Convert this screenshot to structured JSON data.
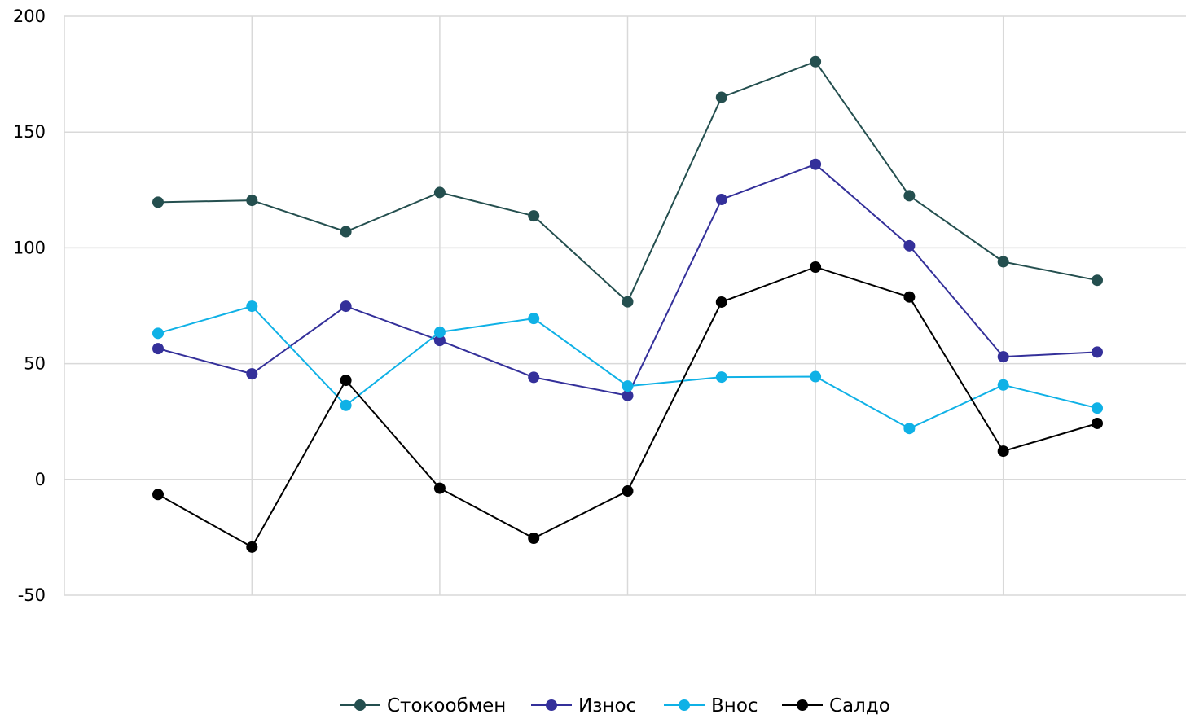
{
  "chart_data": {
    "type": "line",
    "title": "",
    "xlabel": "",
    "ylabel": "",
    "ylim": [
      -50,
      200
    ],
    "yticks": [
      200,
      150,
      100,
      50,
      0,
      -50
    ],
    "grid": true,
    "legend_position": "bottom",
    "x": [
      1,
      2,
      3,
      4,
      5,
      6,
      7,
      8,
      9,
      10,
      11
    ],
    "series": [
      {
        "name": "Стокообмен",
        "color": "#244f4f",
        "values": [
          119.7,
          120.5,
          107,
          123.9,
          113.8,
          76.7,
          165,
          180.4,
          122.5,
          94,
          86
        ]
      },
      {
        "name": "Износ",
        "color": "#34309a",
        "values": [
          56.5,
          45.6,
          74.8,
          60,
          44.1,
          36.2,
          120.9,
          136.1,
          100.9,
          53,
          55
        ]
      },
      {
        "name": "Внос",
        "color": "#0fb1e6",
        "values": [
          63.1,
          74.8,
          32,
          63.6,
          69.5,
          40.3,
          44.2,
          44.4,
          22,
          40.8,
          30.8
        ]
      },
      {
        "name": "Салдо",
        "color": "#000000",
        "values": [
          -6.5,
          -29.2,
          42.8,
          -3.8,
          -25.4,
          -5,
          76.6,
          91.7,
          78.8,
          12.2,
          24.2
        ]
      }
    ]
  }
}
